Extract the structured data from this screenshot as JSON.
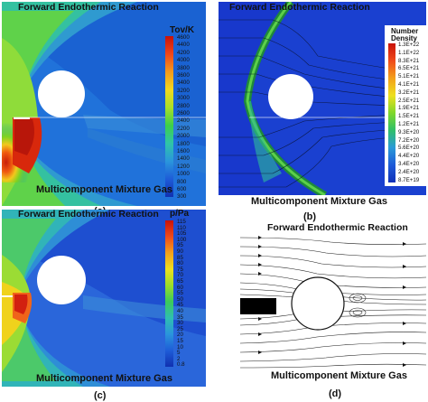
{
  "panels": [
    {
      "letter": "(a)",
      "title": "Forward Endothermic Reaction",
      "subtitle": "Multicomponent Mixture Gas",
      "colorbar_title": "Tov/K",
      "ticks": [
        "4600",
        "4400",
        "4200",
        "4000",
        "3800",
        "3600",
        "3400",
        "3200",
        "3000",
        "2800",
        "2600",
        "2400",
        "2200",
        "2000",
        "1800",
        "1600",
        "1400",
        "1200",
        "1000",
        "800",
        "600",
        "300"
      ]
    },
    {
      "letter": "(b)",
      "title": "Forward Endothermic Reaction",
      "subtitle": "Multicomponent Mixture Gas",
      "colorbar_title_1": "Number",
      "colorbar_title_2": "Density",
      "ticks": [
        "1.3E+22",
        "1.1E+22",
        "8.3E+21",
        "6.5E+21",
        "5.1E+21",
        "4.1E+21",
        "3.2E+21",
        "2.5E+21",
        "1.9E+21",
        "1.5E+21",
        "1.2E+21",
        "9.3E+20",
        "7.2E+20",
        "5.6E+20",
        "4.4E+20",
        "3.4E+20",
        "2.4E+20",
        "8.7E+19"
      ]
    },
    {
      "letter": "(c)",
      "title": "Forward Endothermic Reaction",
      "subtitle": "Multicomponent Mixture Gas",
      "colorbar_title": "p/Pa",
      "ticks": [
        "115",
        "110",
        "105",
        "100",
        "95",
        "90",
        "85",
        "80",
        "75",
        "70",
        "65",
        "60",
        "55",
        "50",
        "45",
        "40",
        "35",
        "30",
        "25",
        "20",
        "15",
        "10",
        "5",
        "2",
        "0.8"
      ]
    },
    {
      "letter": "(d)",
      "title": "Forward Endothermic Reaction",
      "subtitle": "Multicomponent Mixture Gas"
    }
  ]
}
